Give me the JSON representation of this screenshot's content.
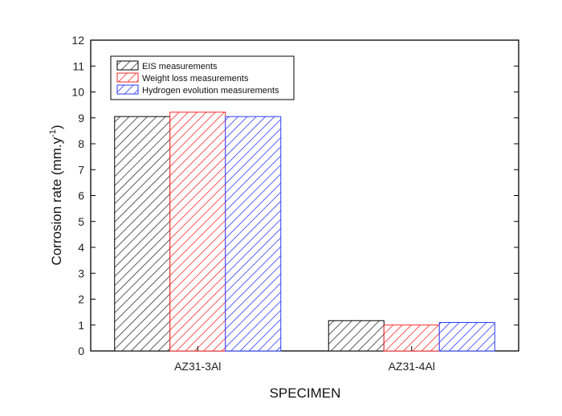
{
  "chart_data": {
    "type": "bar",
    "title": "",
    "xlabel": "SPECIMEN",
    "ylabel": "Corrosion rate (mm.y",
    "ylabel_superscript": "-1",
    "ylabel_suffix": ")",
    "categories": [
      "AZ31-3Al",
      "AZ31-4Al"
    ],
    "ylim": [
      0,
      12
    ],
    "yticks": [
      0,
      1,
      2,
      3,
      4,
      5,
      6,
      7,
      8,
      9,
      10,
      11,
      12
    ],
    "grid": false,
    "legend_position": "top-left",
    "series": [
      {
        "name": "EIS measurements",
        "values": [
          9.05,
          1.17
        ],
        "color": "#333333",
        "hatch": "diagonal"
      },
      {
        "name": "Weight loss measurements",
        "values": [
          9.22,
          1.0
        ],
        "color": "#ff2a2a",
        "hatch": "diagonal"
      },
      {
        "name": "Hydrogen evolution measurements",
        "values": [
          9.05,
          1.1
        ],
        "color": "#2a3cff",
        "hatch": "diagonal"
      }
    ]
  }
}
